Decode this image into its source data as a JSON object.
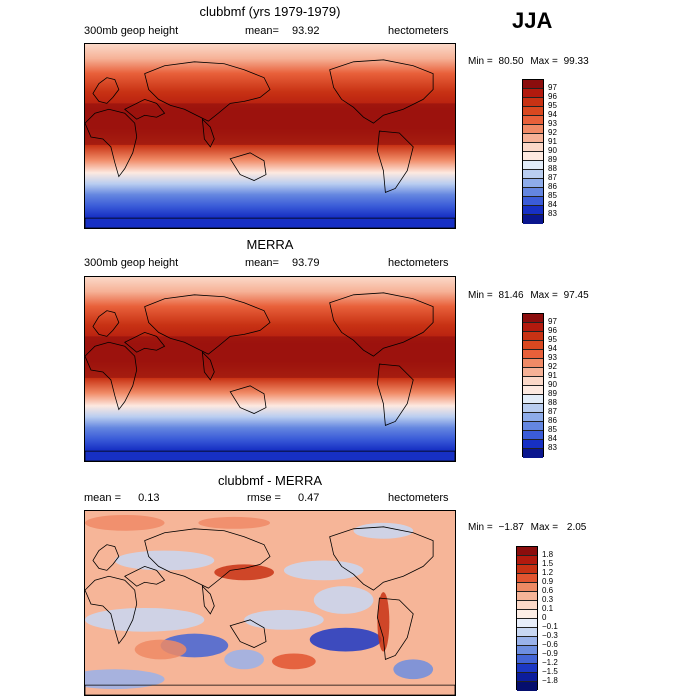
{
  "season": "JJA",
  "panels": [
    {
      "id": "model",
      "title": "clubbmf (yrs 1979-1979)",
      "left_label": "300mb geop height",
      "mean_label": "mean=",
      "mean_value": "93.92",
      "units": "hectometers",
      "min_label": "Min =",
      "min_value": "80.50",
      "max_label": "Max =",
      "max_value": "99.33",
      "colorbar_labels": [
        "97",
        "96",
        "95",
        "94",
        "93",
        "92",
        "91",
        "90",
        "89",
        "88",
        "87",
        "86",
        "85",
        "84",
        "83"
      ]
    },
    {
      "id": "obs",
      "title": "MERRA",
      "left_label": "300mb geop height",
      "mean_label": "mean=",
      "mean_value": "93.79",
      "units": "hectometers",
      "min_label": "Min =",
      "min_value": "81.46",
      "max_label": "Max =",
      "max_value": "97.45",
      "colorbar_labels": [
        "97",
        "96",
        "95",
        "94",
        "93",
        "92",
        "91",
        "90",
        "89",
        "88",
        "87",
        "86",
        "85",
        "84",
        "83"
      ]
    },
    {
      "id": "diff",
      "title": "clubbmf - MERRA",
      "mean_label": "mean =",
      "mean_value": "0.13",
      "rmse_label": "rmse =",
      "rmse_value": "0.47",
      "units": "hectometers",
      "min_label": "Min =",
      "min_value": "−1.87",
      "max_label": "Max =",
      "max_value": "2.05",
      "colorbar_labels": [
        "1.8",
        "1.5",
        "1.2",
        "0.9",
        "0.6",
        "0.3",
        "0.1",
        "0",
        "−0.1",
        "−0.3",
        "−0.6",
        "−0.9",
        "−1.2",
        "−1.5",
        "−1.8"
      ]
    }
  ],
  "colors": {
    "abs_scale": [
      "#8b0d0d",
      "#b21a0e",
      "#c83214",
      "#d94820",
      "#e8603a",
      "#f08a66",
      "#f6b196",
      "#fbd8c8",
      "#fde9e0",
      "#e2ecf8",
      "#b9cdf0",
      "#8eacea",
      "#6486e0",
      "#3b5cd8",
      "#1730c4",
      "#0a168e"
    ],
    "diff_scale": [
      "#8b0d0d",
      "#b21a0e",
      "#c83214",
      "#e25530",
      "#ee8a64",
      "#f6b598",
      "#fcd9c8",
      "#fdeee6",
      "#e8eefa",
      "#c8d7f2",
      "#99b2ea",
      "#6d8ee0",
      "#4365d6",
      "#1c38c4",
      "#0c1d9c",
      "#050e6e"
    ]
  }
}
